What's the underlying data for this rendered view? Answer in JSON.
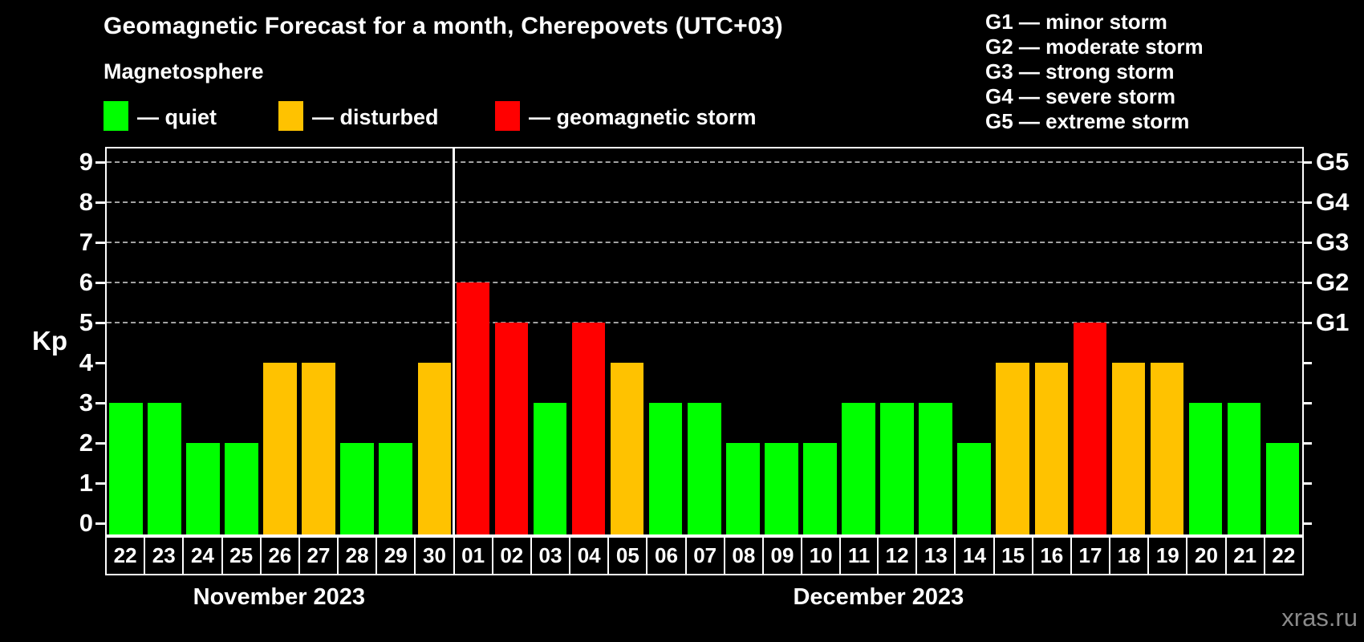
{
  "title": "Geomagnetic Forecast for a month, Cherepovets (UTC+03)",
  "subtitle": "Magnetosphere",
  "legend": {
    "items": [
      {
        "key": "quiet",
        "label": "— quiet"
      },
      {
        "key": "disturbed",
        "label": "— disturbed"
      },
      {
        "key": "storm",
        "label": "— geomagnetic storm"
      }
    ]
  },
  "g_legend": {
    "lines": [
      "G1 — minor storm",
      "G2 — moderate storm",
      "G3 — strong storm",
      "G4 — severe storm",
      "G5 — extreme storm"
    ]
  },
  "colors": {
    "quiet": "#00ff00",
    "disturbed": "#ffc200",
    "storm": "#ff0000",
    "grid": "#a3a3a3",
    "axis": "#ffffff",
    "background": "#000000",
    "watermark": "#8a8a8a"
  },
  "watermark": "xras.ru",
  "chart_data": {
    "type": "bar",
    "title": "Geomagnetic Forecast for a month, Cherepovets (UTC+03)",
    "ylabel": "Kp",
    "ylim": [
      0,
      9
    ],
    "y_ticks": [
      0,
      1,
      2,
      3,
      4,
      5,
      6,
      7,
      8,
      9
    ],
    "gridlines_at": [
      5,
      6,
      7,
      8,
      9
    ],
    "right_axis_labels": [
      "G1",
      "G2",
      "G3",
      "G4",
      "G5"
    ],
    "right_axis_kp_of_g1": 5,
    "legend_position": "top",
    "months": [
      {
        "label": "November 2023",
        "days": 9
      },
      {
        "label": "December 2023",
        "days": 22
      }
    ],
    "categories": [
      "22",
      "23",
      "24",
      "25",
      "26",
      "27",
      "28",
      "29",
      "30",
      "01",
      "02",
      "03",
      "04",
      "05",
      "06",
      "07",
      "08",
      "09",
      "10",
      "11",
      "12",
      "13",
      "14",
      "15",
      "16",
      "17",
      "18",
      "19",
      "20",
      "21",
      "22"
    ],
    "values": [
      3,
      3,
      2,
      2,
      4,
      4,
      2,
      2,
      4,
      6,
      5,
      3,
      5,
      4,
      3,
      3,
      2,
      2,
      2,
      3,
      3,
      3,
      2,
      4,
      4,
      5,
      4,
      4,
      3,
      3,
      2
    ],
    "statuses": [
      "quiet",
      "quiet",
      "quiet",
      "quiet",
      "disturbed",
      "disturbed",
      "quiet",
      "quiet",
      "disturbed",
      "storm",
      "storm",
      "quiet",
      "storm",
      "disturbed",
      "quiet",
      "quiet",
      "quiet",
      "quiet",
      "quiet",
      "quiet",
      "quiet",
      "quiet",
      "quiet",
      "disturbed",
      "disturbed",
      "storm",
      "disturbed",
      "disturbed",
      "quiet",
      "quiet",
      "quiet"
    ]
  }
}
